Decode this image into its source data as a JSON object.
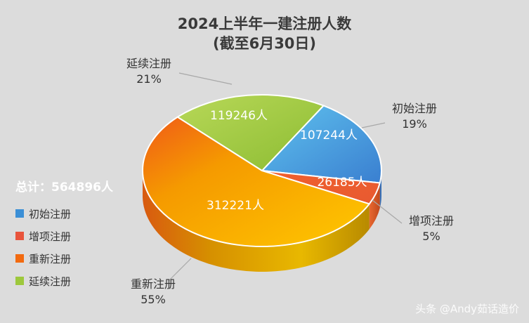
{
  "title": {
    "line1": "2024上半年一建注册人数",
    "line2": "(截至6月30日)"
  },
  "total_label": "总计：564896人",
  "watermark": "头条 @Andy茹话造价",
  "colors": {
    "初始注册": "#4a90d9",
    "增项注册": "#e8543c",
    "重新注册": "#f5a300",
    "延续注册": "#9dc83c"
  },
  "chart_data": {
    "type": "pie",
    "title": "2024上半年一建注册人数 (截至6月30日)",
    "series": [
      {
        "name": "初始注册",
        "value": 107244,
        "value_label": "107244人",
        "percent": "19%"
      },
      {
        "name": "增项注册",
        "value": 26185,
        "value_label": "26185人",
        "percent": "5%"
      },
      {
        "name": "重新注册",
        "value": 312221,
        "value_label": "312221人",
        "percent": "55%"
      },
      {
        "name": "延续注册",
        "value": 119246,
        "value_label": "119246人",
        "percent": "21%"
      }
    ],
    "legend": [
      "初始注册",
      "增项注册",
      "重新注册",
      "延续注册"
    ],
    "legend_position": "left",
    "total": 564896
  }
}
